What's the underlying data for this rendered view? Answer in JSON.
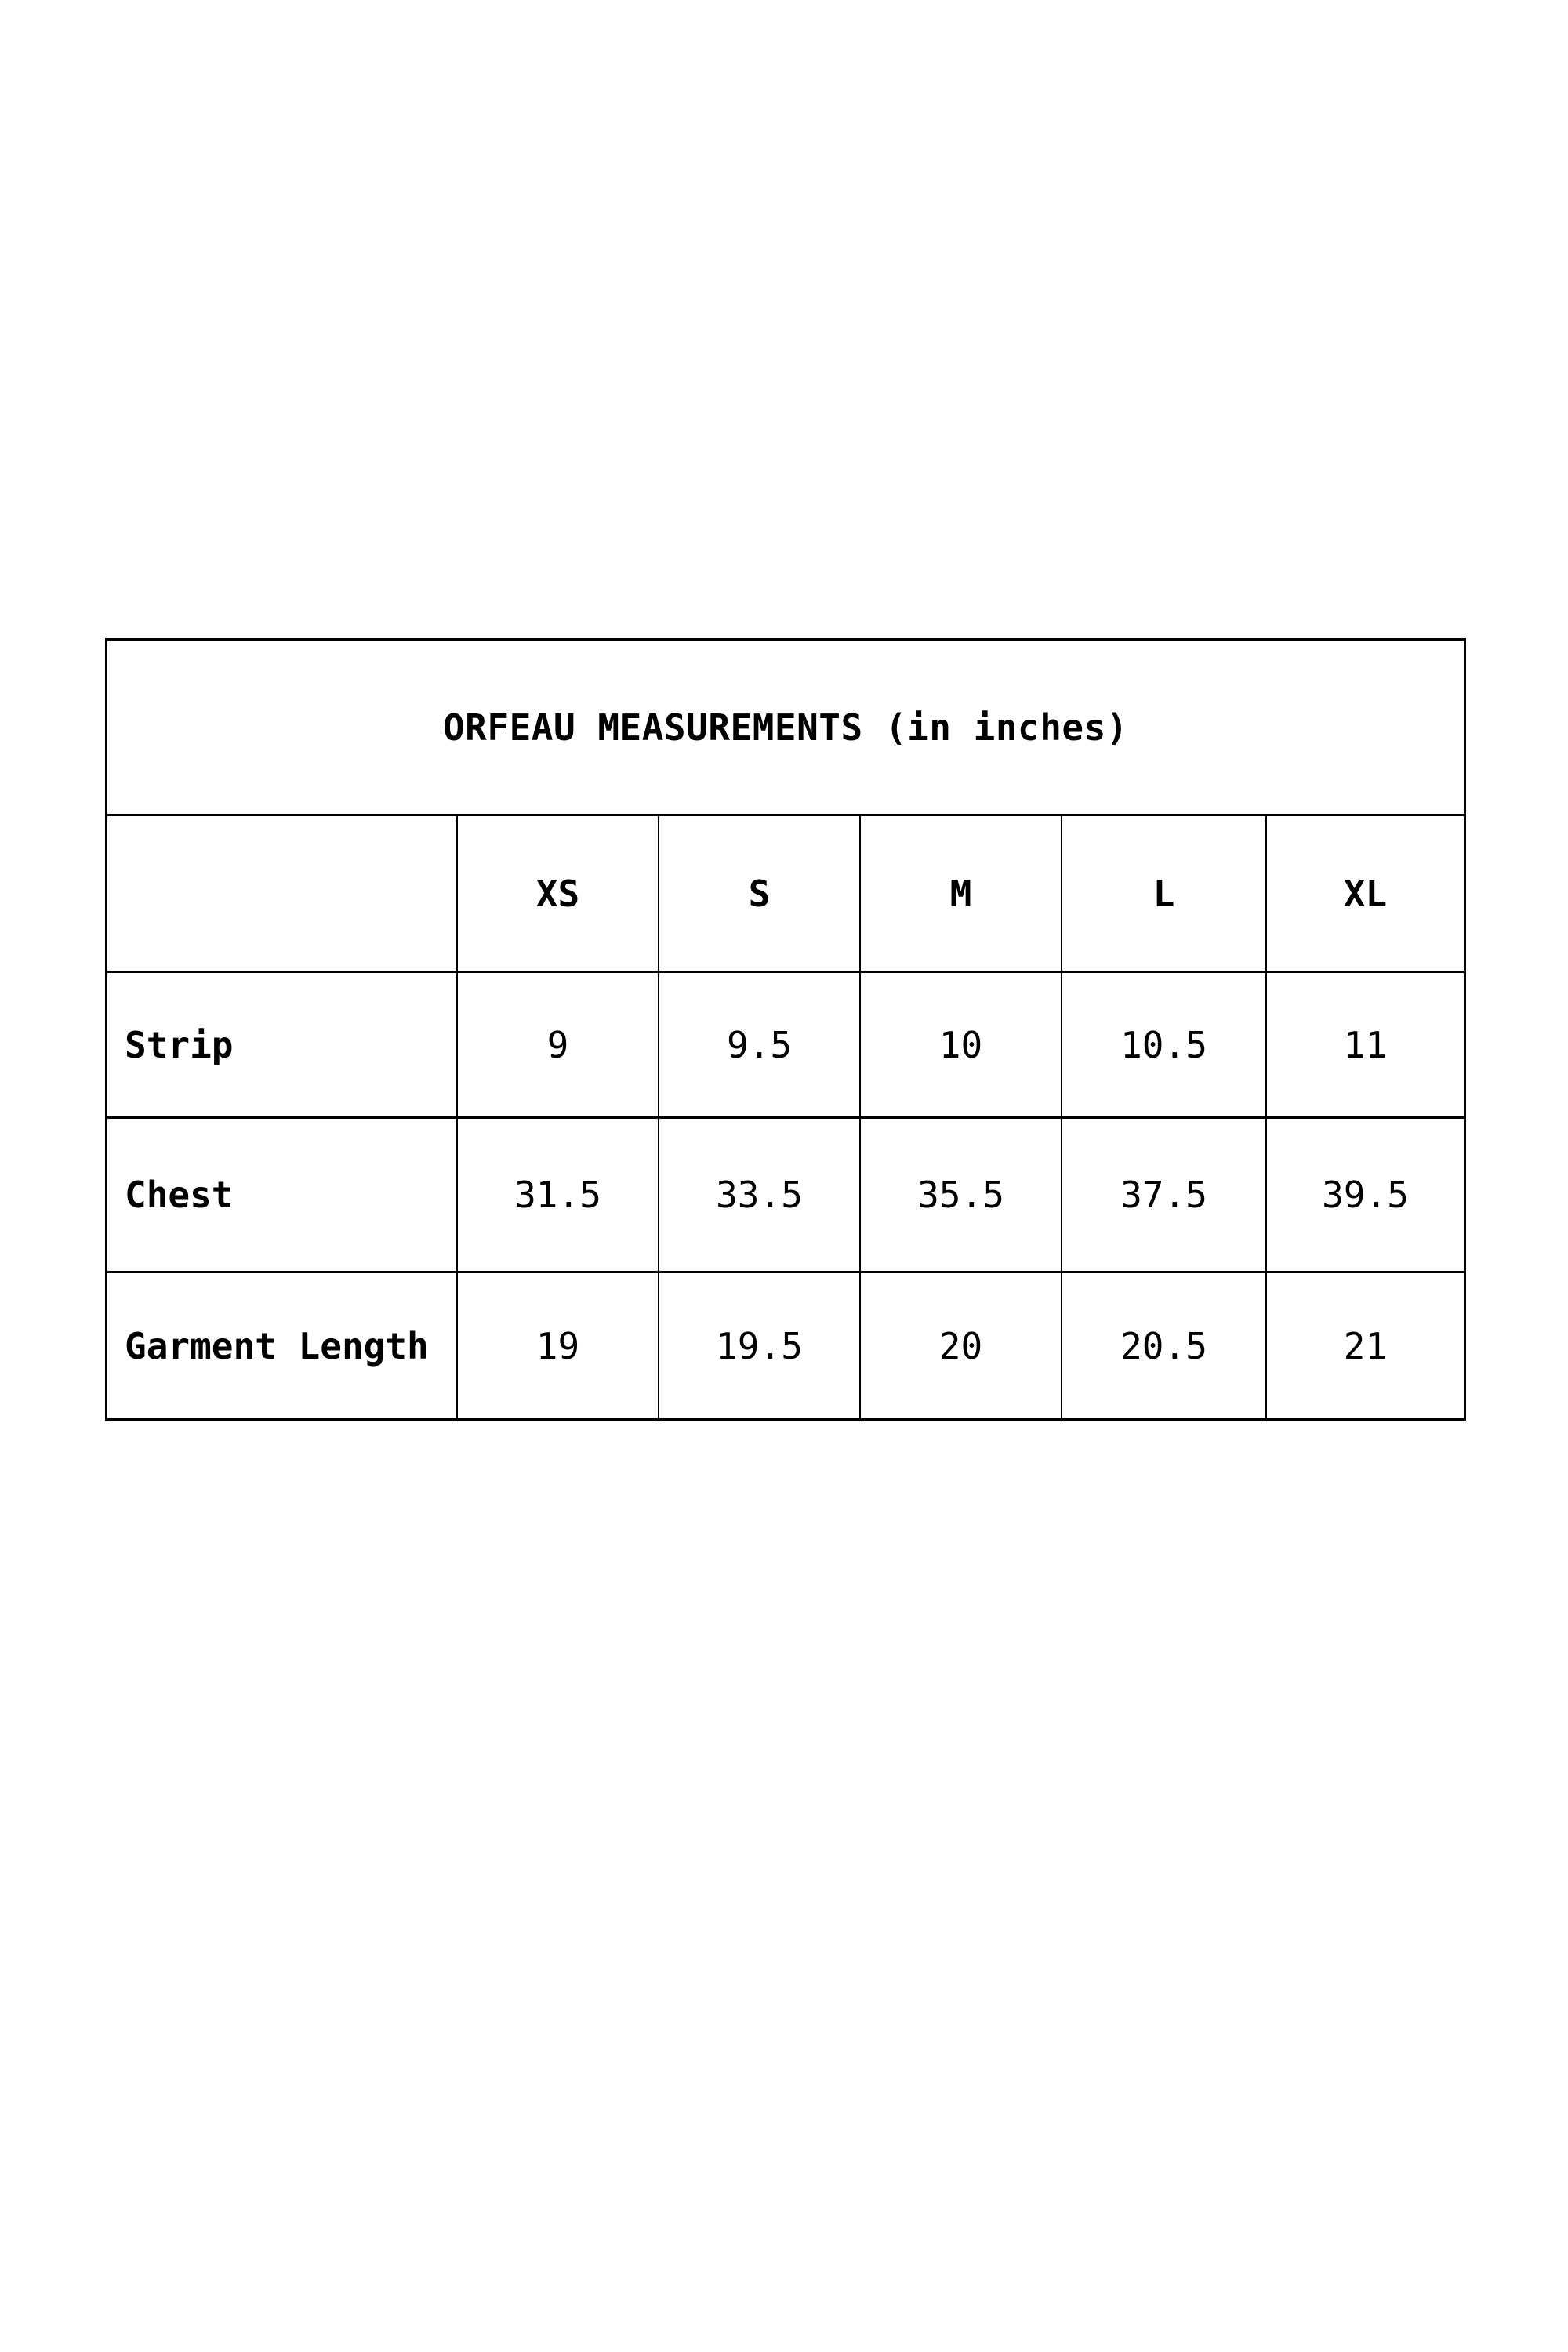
{
  "chart_data": {
    "type": "table",
    "title": "ORFEAU MEASUREMENTS (in inches)",
    "columns": [
      "",
      "XS",
      "S",
      "M",
      "L",
      "XL"
    ],
    "rows": [
      {
        "label": "Strip",
        "values": [
          9,
          9.5,
          10,
          10.5,
          11
        ]
      },
      {
        "label": "Chest",
        "values": [
          31.5,
          33.5,
          35.5,
          37.5,
          39.5
        ]
      },
      {
        "label": "Garment Length",
        "values": [
          19,
          19.5,
          20,
          20.5,
          21
        ]
      }
    ],
    "layout": {
      "grid": "full-borders",
      "title_position": "top-merged-row",
      "unit": "inches"
    }
  },
  "table": {
    "title": "ORFEAU MEASUREMENTS (in inches)",
    "headers": [
      "XS",
      "S",
      "M",
      "L",
      "XL"
    ],
    "rows": [
      {
        "label": "Strip",
        "values": [
          "9",
          "9.5",
          "10",
          "10.5",
          "11"
        ]
      },
      {
        "label": "Chest",
        "values": [
          "31.5",
          "33.5",
          "35.5",
          "37.5",
          "39.5"
        ]
      },
      {
        "label": "Garment Length",
        "values": [
          "19",
          "19.5",
          "20",
          "20.5",
          "21"
        ]
      }
    ],
    "colors": {
      "border": "#000000",
      "text": "#000000",
      "background": "#ffffff"
    }
  }
}
